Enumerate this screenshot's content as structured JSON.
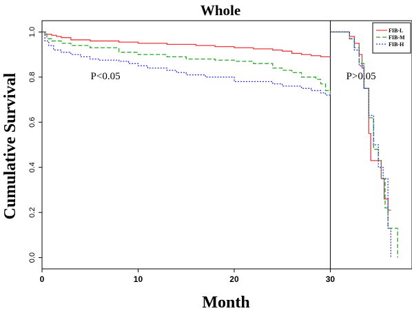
{
  "chart_data": {
    "type": "line",
    "title": "Whole",
    "xlabel": "Month",
    "ylabel": "Cumulative Survival",
    "xlim": [
      0,
      38.5
    ],
    "ylim": [
      -0.05,
      1.05
    ],
    "x_ticks": [
      "0",
      "10",
      "20",
      "30"
    ],
    "x_tick_values": [
      0,
      10,
      20,
      30
    ],
    "y_ticks": [
      "0.0",
      "0.2",
      "0.4",
      "0.6",
      "0.8",
      "1.0"
    ],
    "y_tick_values": [
      0,
      0.2,
      0.4,
      0.6,
      0.8,
      1.0
    ],
    "vline_x": 30,
    "annotations": [
      {
        "text": "P<0.05",
        "x": 6.6,
        "y": 0.79
      },
      {
        "text": "P>0.05",
        "x": 33.2,
        "y": 0.79
      }
    ],
    "legend_position": "top-right",
    "series": [
      {
        "name": "FIB-L",
        "color": "#e8383d",
        "dash": "solid",
        "x": [
          0,
          0.3,
          1,
          1.5,
          2,
          3,
          5,
          8,
          10,
          13,
          16,
          18,
          20,
          22,
          24,
          25,
          26,
          27,
          28,
          29,
          30
        ],
        "y": [
          1.0,
          0.99,
          0.985,
          0.98,
          0.975,
          0.965,
          0.96,
          0.955,
          0.95,
          0.945,
          0.94,
          0.935,
          0.93,
          0.925,
          0.92,
          0.915,
          0.905,
          0.9,
          0.895,
          0.89,
          0.89
        ]
      },
      {
        "name": "FIB-M",
        "color": "#2aa32a",
        "dash": "dashed",
        "x": [
          0,
          0.5,
          1,
          2,
          3,
          5,
          8,
          10,
          13,
          15,
          18,
          20,
          22,
          24,
          25,
          26,
          27,
          28,
          28.5,
          29,
          29.5,
          30
        ],
        "y": [
          1.0,
          0.97,
          0.96,
          0.95,
          0.94,
          0.93,
          0.91,
          0.9,
          0.89,
          0.88,
          0.875,
          0.87,
          0.86,
          0.84,
          0.83,
          0.82,
          0.8,
          0.8,
          0.79,
          0.77,
          0.74,
          0.72
        ]
      },
      {
        "name": "FIB-H",
        "color": "#3030d8",
        "dash": "dotted",
        "x": [
          0,
          0.3,
          0.7,
          1.2,
          2,
          3,
          4,
          5,
          6,
          8,
          9,
          10,
          11,
          12,
          13,
          14,
          15,
          17,
          20,
          23,
          24,
          25,
          27,
          28,
          29,
          29.5,
          30
        ],
        "y": [
          1.0,
          0.96,
          0.94,
          0.92,
          0.91,
          0.9,
          0.89,
          0.88,
          0.875,
          0.87,
          0.86,
          0.85,
          0.84,
          0.84,
          0.83,
          0.82,
          0.81,
          0.8,
          0.78,
          0.78,
          0.77,
          0.76,
          0.75,
          0.74,
          0.73,
          0.72,
          0.71
        ]
      }
    ],
    "series_after": [
      {
        "name": "FIB-L",
        "color": "#e8383d",
        "dash": "solid",
        "x": [
          30,
          31.3,
          32,
          32.5,
          33,
          33.3,
          33.5,
          34,
          34.2,
          35,
          35.3,
          35.6,
          36,
          36.3
        ],
        "y": [
          1.0,
          1.0,
          0.98,
          0.95,
          0.9,
          0.84,
          0.75,
          0.55,
          0.43,
          0.43,
          0.35,
          0.26,
          0.21,
          0.21
        ]
      },
      {
        "name": "FIB-M",
        "color": "#2aa32a",
        "dash": "dashed",
        "x": [
          30,
          31.2,
          32,
          32.5,
          33,
          33.5,
          34,
          34.5,
          35,
          35.3,
          35.7,
          36,
          36.3,
          36.8,
          37
        ],
        "y": [
          1.0,
          1.0,
          0.97,
          0.93,
          0.86,
          0.75,
          0.62,
          0.48,
          0.43,
          0.35,
          0.22,
          0.13,
          0.13,
          0.13,
          0.0
        ]
      },
      {
        "name": "FIB-H",
        "color": "#3030d8",
        "dash": "dotted",
        "x": [
          30,
          31,
          31.5,
          32,
          32.5,
          33,
          33.5,
          34,
          34.5,
          35,
          35.5,
          36,
          36.3
        ],
        "y": [
          1.0,
          1.0,
          1.0,
          0.97,
          0.92,
          0.85,
          0.75,
          0.63,
          0.5,
          0.4,
          0.35,
          0.13,
          0.0
        ]
      }
    ]
  }
}
